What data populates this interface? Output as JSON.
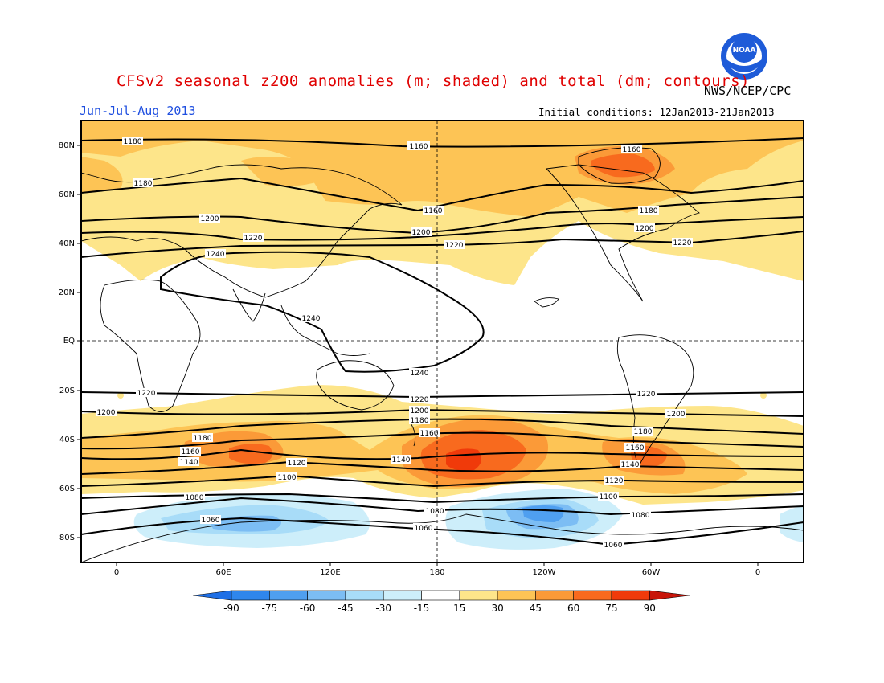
{
  "header": {
    "title": "CFSv2 seasonal z200 anomalies (m; shaded) and total (dm; contours)",
    "agency": "NWS/NCEP/CPC",
    "season": "Jun-Jul-Aug 2013",
    "initial_conditions": "Initial conditions: 12Jan2013-21Jan2013",
    "logo_text": "NOAA"
  },
  "axes": {
    "lat_labels": [
      "80N",
      "60N",
      "40N",
      "20N",
      "EQ",
      "20S",
      "40S",
      "60S",
      "80S"
    ],
    "lon_labels": [
      "0",
      "60E",
      "120E",
      "180",
      "120W",
      "60W",
      "0"
    ]
  },
  "colorbar": {
    "labels": [
      "-90",
      "-75",
      "-60",
      "-45",
      "-30",
      "-15",
      "15",
      "30",
      "45",
      "60",
      "75",
      "90"
    ],
    "colors": [
      "#1e6fe6",
      "#2f86ec",
      "#4f9ff0",
      "#7cbdf4",
      "#a8dcf8",
      "#cdeefa",
      "#ffffff",
      "#fde58a",
      "#fdc455",
      "#fb9a38",
      "#f86a1e",
      "#f03a0a",
      "#c8160a"
    ]
  },
  "contours": {
    "labels": [
      "1160",
      "1180",
      "1200",
      "1220",
      "1240",
      "1240",
      "1240",
      "1220",
      "1200",
      "1180",
      "1160",
      "1140",
      "1120",
      "1100",
      "1080",
      "1060"
    ],
    "placed": [
      {
        "t": "1180",
        "id": "c1"
      },
      {
        "t": "1160",
        "id": "c2"
      },
      {
        "t": "1160",
        "id": "c3"
      },
      {
        "t": "1180",
        "id": "c4"
      },
      {
        "t": "1160",
        "id": "c5"
      },
      {
        "t": "1180",
        "id": "c6"
      },
      {
        "t": "1200",
        "id": "c7"
      },
      {
        "t": "1200",
        "id": "c8"
      },
      {
        "t": "1200",
        "id": "c9"
      },
      {
        "t": "1220",
        "id": "c10"
      },
      {
        "t": "1220",
        "id": "c11"
      },
      {
        "t": "1220",
        "id": "c12"
      },
      {
        "t": "1240",
        "id": "c13"
      },
      {
        "t": "1240",
        "id": "c14"
      },
      {
        "t": "1240",
        "id": "c15"
      },
      {
        "t": "1220",
        "id": "c16"
      },
      {
        "t": "1220",
        "id": "c17"
      },
      {
        "t": "1220",
        "id": "c18"
      },
      {
        "t": "1200",
        "id": "c19"
      },
      {
        "t": "1200",
        "id": "c20"
      },
      {
        "t": "1200",
        "id": "c21"
      },
      {
        "t": "1180",
        "id": "c22"
      },
      {
        "t": "1180",
        "id": "c23"
      },
      {
        "t": "1180",
        "id": "c24"
      },
      {
        "t": "1160",
        "id": "c25"
      },
      {
        "t": "1160",
        "id": "c26"
      },
      {
        "t": "1160",
        "id": "c27"
      },
      {
        "t": "1140",
        "id": "c28"
      },
      {
        "t": "1140",
        "id": "c29"
      },
      {
        "t": "1140",
        "id": "c30"
      },
      {
        "t": "1120",
        "id": "c31"
      },
      {
        "t": "1120",
        "id": "c32"
      },
      {
        "t": "1100",
        "id": "c33"
      },
      {
        "t": "1100",
        "id": "c34"
      },
      {
        "t": "1080",
        "id": "c35"
      },
      {
        "t": "1080",
        "id": "c36"
      },
      {
        "t": "1080",
        "id": "c37"
      },
      {
        "t": "1060",
        "id": "c38"
      },
      {
        "t": "1060",
        "id": "c39"
      },
      {
        "t": "1060",
        "id": "c40"
      }
    ]
  }
}
